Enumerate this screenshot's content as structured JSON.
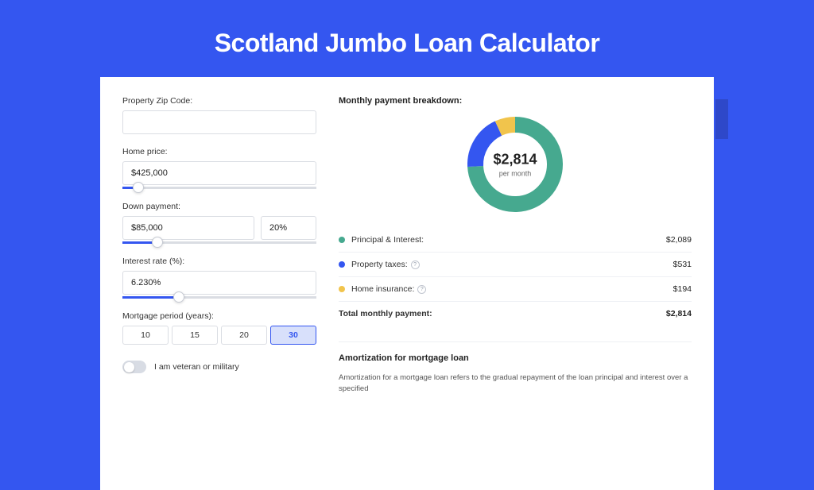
{
  "hero": {
    "title": "Scotland Jumbo Loan Calculator"
  },
  "colors": {
    "primary": "#3456f0",
    "accent_bar": "#2e48c9",
    "card_bg": "#ffffff",
    "input_border": "#dadde3",
    "slider_track": "#dadde3",
    "slider_fill": "#3456f0",
    "period_selected_bg": "#d8e0fb",
    "divider": "#eef0f4",
    "text_primary": "#222222",
    "text_secondary": "#555555"
  },
  "fields": {
    "zip": {
      "label": "Property Zip Code:",
      "value": ""
    },
    "home_price": {
      "label": "Home price:",
      "value": "$425,000",
      "slider_pct": 8
    },
    "down_payment": {
      "label": "Down payment:",
      "value": "$85,000",
      "pct_value": "20%",
      "slider_pct": 18
    },
    "interest": {
      "label": "Interest rate (%):",
      "value": "6.230%",
      "slider_pct": 29
    },
    "period": {
      "label": "Mortgage period (years):",
      "options": [
        "10",
        "15",
        "20",
        "30"
      ],
      "selected_index": 3
    },
    "veteran": {
      "label": "I am veteran or military",
      "value": false
    }
  },
  "breakdown": {
    "title": "Monthly payment breakdown:",
    "donut": {
      "amount": "$2,814",
      "per_month": "per month",
      "radius": 60,
      "thickness": 20,
      "segments": [
        {
          "label": "Principal & Interest",
          "value": 2089,
          "color": "#46a98f",
          "pct": 74.2
        },
        {
          "label": "Property taxes",
          "value": 531,
          "color": "#3456f0",
          "pct": 18.9
        },
        {
          "label": "Home insurance",
          "value": 194,
          "color": "#f1c44c",
          "pct": 6.9
        }
      ]
    },
    "rows": [
      {
        "dot": "#46a98f",
        "label": "Principal & Interest:",
        "help": false,
        "value": "$2,089"
      },
      {
        "dot": "#3456f0",
        "label": "Property taxes:",
        "help": true,
        "value": "$531"
      },
      {
        "dot": "#f1c44c",
        "label": "Home insurance:",
        "help": true,
        "value": "$194"
      }
    ],
    "total": {
      "label": "Total monthly payment:",
      "value": "$2,814"
    }
  },
  "amortization": {
    "title": "Amortization for mortgage loan",
    "text": "Amortization for a mortgage loan refers to the gradual repayment of the loan principal and interest over a specified"
  }
}
